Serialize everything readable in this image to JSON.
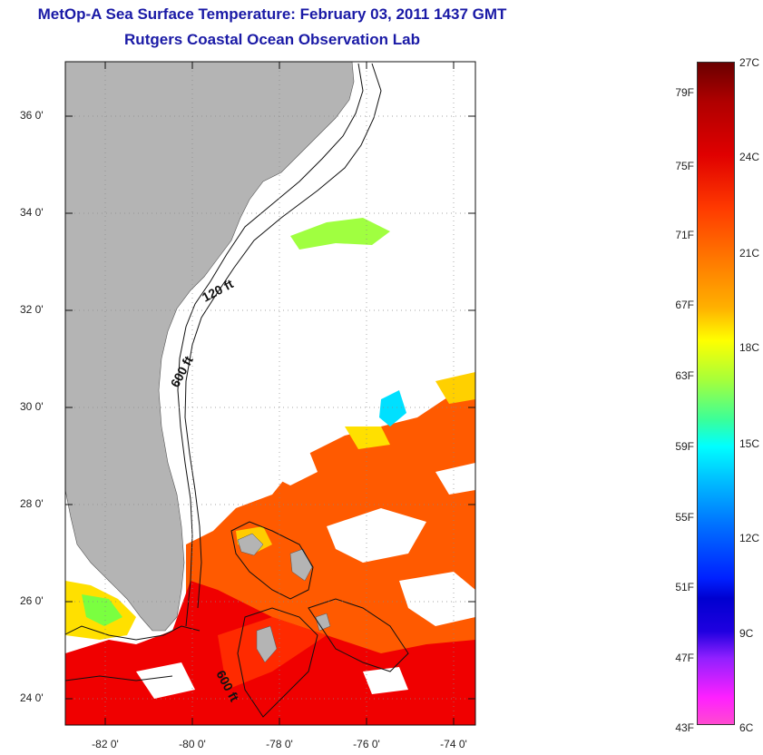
{
  "title": {
    "line1": "MetOp-A Sea Surface Temperature:  February 03, 2011 1437 GMT",
    "line2": "Rutgers Coastal Ocean Observation Lab"
  },
  "axes": {
    "lat_labels": [
      "36 0'",
      "34 0'",
      "32 0'",
      "30 0'",
      "28 0'",
      "26 0'",
      "24 0'"
    ],
    "lon_labels": [
      "-82 0'",
      "-80 0'",
      "-78 0'",
      "-76 0'",
      "-74 0'"
    ]
  },
  "contours": {
    "label_120": "120 ft",
    "label_600a": "600 ft",
    "label_600b": "600 ft"
  },
  "colorbar": {
    "fahrenheit": [
      "79F",
      "75F",
      "71F",
      "67F",
      "63F",
      "59F",
      "55F",
      "51F",
      "47F",
      "43F"
    ],
    "celsius": [
      "27C",
      "24C",
      "21C",
      "18C",
      "15C",
      "12C",
      "9C",
      "6C"
    ]
  },
  "colors": {
    "land": "#b4b4b4",
    "title": "#1a1aa6",
    "warm_water": "#ff5000",
    "warmest_water": "#f00000"
  }
}
